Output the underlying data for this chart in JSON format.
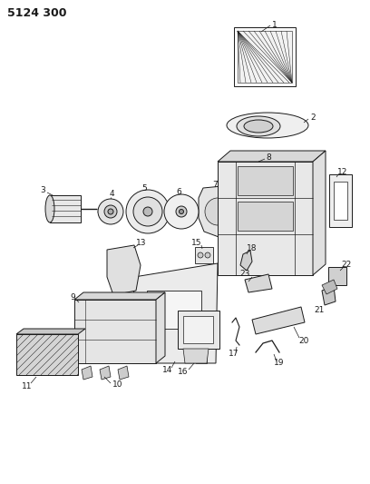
{
  "title": "5124 300",
  "bg_color": "#ffffff",
  "line_color": "#1a1a1a",
  "fig_width": 4.08,
  "fig_height": 5.33,
  "dpi": 100
}
